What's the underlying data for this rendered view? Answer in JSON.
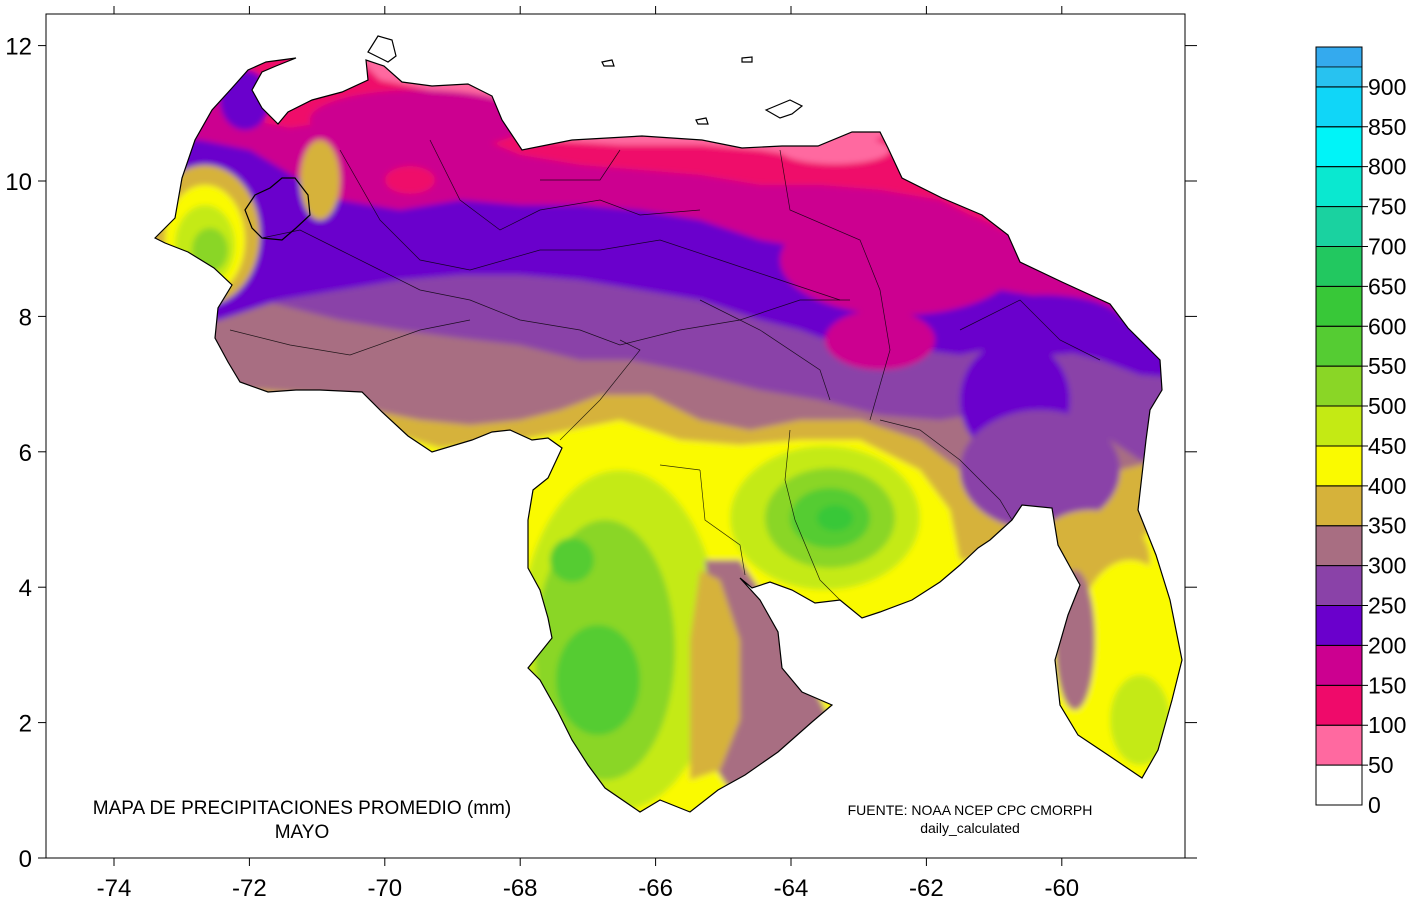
{
  "map": {
    "title_line1": "MAPA DE PRECIPITACIONES PROMEDIO (mm)",
    "title_line2": "MAYO",
    "source_line1": "FUENTE: NOAA NCEP CPC CMORPH",
    "source_line2": "daily_calculated"
  },
  "axes": {
    "x_ticks": [
      {
        "value": -74,
        "label": "-74"
      },
      {
        "value": -72,
        "label": "-72"
      },
      {
        "value": -70,
        "label": "-70"
      },
      {
        "value": -68,
        "label": "-68"
      },
      {
        "value": -66,
        "label": "-66"
      },
      {
        "value": -64,
        "label": "-64"
      },
      {
        "value": -62,
        "label": "-62"
      },
      {
        "value": -60,
        "label": "-60"
      }
    ],
    "y_ticks": [
      {
        "value": 0,
        "label": "0"
      },
      {
        "value": 2,
        "label": "2"
      },
      {
        "value": 4,
        "label": "4"
      },
      {
        "value": 6,
        "label": "6"
      },
      {
        "value": 8,
        "label": "8"
      },
      {
        "value": 10,
        "label": "10"
      },
      {
        "value": 12,
        "label": "12"
      }
    ],
    "x_range": [
      -75,
      -58
    ],
    "y_range": [
      0,
      12.5
    ]
  },
  "legend": {
    "levels": [
      {
        "value": 0,
        "label": "0",
        "color": "#ffffff"
      },
      {
        "value": 50,
        "label": "50",
        "color": "#ff69a0"
      },
      {
        "value": 100,
        "label": "100",
        "color": "#ef0a6a"
      },
      {
        "value": 150,
        "label": "150",
        "color": "#cc0090"
      },
      {
        "value": 200,
        "label": "200",
        "color": "#6a00cc"
      },
      {
        "value": 250,
        "label": "250",
        "color": "#8a42a8"
      },
      {
        "value": 300,
        "label": "300",
        "color": "#a86e82"
      },
      {
        "value": 350,
        "label": "350",
        "color": "#d6b23a"
      },
      {
        "value": 400,
        "label": "400",
        "color": "#fafa00"
      },
      {
        "value": 450,
        "label": "450",
        "color": "#c4ea14"
      },
      {
        "value": 500,
        "label": "500",
        "color": "#8ad626"
      },
      {
        "value": 550,
        "label": "550",
        "color": "#55cc33"
      },
      {
        "value": 600,
        "label": "600",
        "color": "#38c838"
      },
      {
        "value": 650,
        "label": "650",
        "color": "#22c860"
      },
      {
        "value": 700,
        "label": "700",
        "color": "#1ad2a0"
      },
      {
        "value": 750,
        "label": "750",
        "color": "#0ae8d0"
      },
      {
        "value": 800,
        "label": "800",
        "color": "#00f4f8"
      },
      {
        "value": 850,
        "label": "850",
        "color": "#10d6f8"
      },
      {
        "value": 900,
        "label": "900",
        "color": "#28c2f0"
      }
    ],
    "top_color": "#34aaee"
  }
}
